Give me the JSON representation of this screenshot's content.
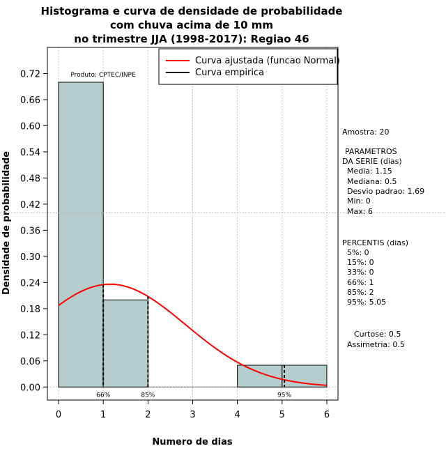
{
  "chart_data": {
    "type": "bar",
    "title_lines": [
      "Histograma e curva de densidade de probabilidade",
      "com chuva acima de 10 mm",
      "no trimestre JJA (1998-2017): Regiao 46"
    ],
    "xlabel": "Numero de dias",
    "ylabel": "Densidade de probabilidade",
    "xlim": [
      -0.25,
      6.25
    ],
    "ylim": [
      -0.03,
      0.78
    ],
    "x_ticks": [
      0,
      1,
      2,
      3,
      4,
      5,
      6
    ],
    "y_ticks": [
      0.0,
      0.06,
      0.12,
      0.18,
      0.24,
      0.3,
      0.36,
      0.42,
      0.48,
      0.54,
      0.6,
      0.66,
      0.72
    ],
    "y_tick_labels": [
      "0.00",
      "0.06",
      "0.12",
      "0.18",
      "0.24",
      "0.30",
      "0.36",
      "0.42",
      "0.48",
      "0.54",
      "0.60",
      "0.66",
      "0.72"
    ],
    "bars": [
      {
        "x0": 0,
        "x1": 1,
        "value": 0.7
      },
      {
        "x0": 1,
        "x1": 2,
        "value": 0.2
      },
      {
        "x0": 2,
        "x1": 3,
        "value": 0.0
      },
      {
        "x0": 3,
        "x1": 4,
        "value": 0.0
      },
      {
        "x0": 4,
        "x1": 5,
        "value": 0.05
      },
      {
        "x0": 5,
        "x1": 6,
        "value": 0.05
      }
    ],
    "bar_color": "#b5cdcd",
    "fitted_curve": {
      "name": "Curva ajustada (funcao Normal)",
      "mean": 1.15,
      "sd": 1.69,
      "color": "#ff0000",
      "x_range": [
        0,
        6
      ]
    },
    "empirical_curve": {
      "name": "Curva empirica",
      "color": "#000000"
    },
    "reference_hline": 0.4,
    "percentile_markers": [
      {
        "x": 1,
        "label": "66%"
      },
      {
        "x": 2,
        "label": "85%"
      },
      {
        "x": 5.05,
        "label": "95%"
      }
    ],
    "product_label": "Produto: CPTEC/INPE",
    "legend_position": "top-right"
  },
  "stats_panel": {
    "sample": "Amostra: 20",
    "params_title_1": "PARAMETROS",
    "params_title_2": "DA SERIE (dias)",
    "media": "Media: 1.15",
    "mediana": "Mediana: 0.5",
    "desvio": "Desvio padrao: 1.69",
    "min": "Min: 0",
    "max": "Max: 6",
    "percentis_title": "PERCENTIS (dias)",
    "p5": "5%: 0",
    "p15": "15%: 0",
    "p33": "33%: 0",
    "p66": "66%: 1",
    "p85": "85%: 2",
    "p95": "95%: 5.05",
    "curtose": "Curtose: 0.5",
    "assimetria": "Assimetria: 0.5"
  }
}
